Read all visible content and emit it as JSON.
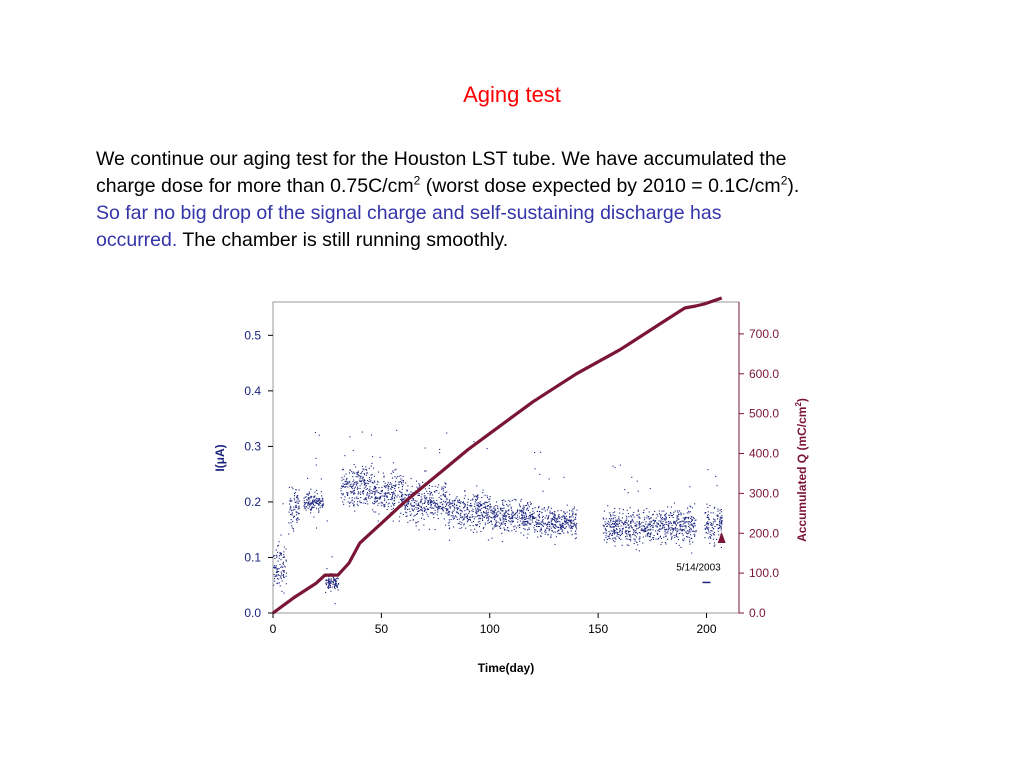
{
  "slide": {
    "title": "Aging test",
    "paragraph": {
      "line1": "We  continue our aging test for the Houston LST tube. We have accumulated the",
      "line2_a": "charge dose for more than 0.75C/cm",
      "line2_sup1": "2",
      "line2_b": " (worst dose expected by 2010 = 0.1C/cm",
      "line2_sup2": "2",
      "line2_c": ").",
      "line3_blue": "So far no big drop of the signal charge and self-sustaining discharge has",
      "line4_blue": "occurred.",
      "line4_black": " The chamber is still running smoothly."
    }
  },
  "colors": {
    "title": "#ff0000",
    "highlight": "#3333aa",
    "current": "#1a237e",
    "charge": "#7b1535"
  },
  "chart_data": {
    "type": "scatter",
    "xlabel": "Time(day)",
    "ylabel_left": "I(μA)",
    "ylabel_right": "Accumulated Q (mC/cm²)",
    "ylabel_right_main": "Accumulated Q (mC/cm",
    "ylabel_right_sup": "2",
    "ylabel_right_close": ")",
    "xlim": [
      0,
      215
    ],
    "ylim_left": [
      0.0,
      0.56
    ],
    "ylim_right": [
      0,
      780
    ],
    "xticks": [
      "0",
      "50",
      "100",
      "150",
      "200"
    ],
    "xtick_values": [
      0,
      50,
      100,
      150,
      200
    ],
    "yticks_left": [
      "0.0",
      "0.1",
      "0.2",
      "0.3",
      "0.4",
      "0.5"
    ],
    "ytick_left_values": [
      0,
      0.1,
      0.2,
      0.3,
      0.4,
      0.5
    ],
    "yticks_right": [
      "0.0",
      "100.0",
      "200.0",
      "300.0",
      "400.0",
      "500.0",
      "600.0",
      "700.0"
    ],
    "ytick_right_values": [
      0,
      100,
      200,
      300,
      400,
      500,
      600,
      700
    ],
    "annotation": "5/14/2003",
    "annotation_point": {
      "x": 200,
      "y": 0.055
    },
    "marker_point": {
      "x": 207,
      "y": 0.135
    },
    "series": [
      {
        "axis": "right",
        "kind": "line",
        "x": [
          0,
          10,
          20,
          24,
          30,
          35,
          40,
          50,
          60,
          70,
          80,
          90,
          100,
          110,
          120,
          130,
          140,
          150,
          160,
          170,
          180,
          190,
          195,
          199,
          207
        ],
        "values": [
          0,
          40,
          75,
          95,
          95,
          125,
          175,
          225,
          275,
          320,
          365,
          410,
          450,
          490,
          530,
          565,
          600,
          630,
          660,
          695,
          730,
          765,
          770,
          775,
          790
        ]
      },
      {
        "axis": "left",
        "kind": "scatter",
        "clusters": [
          {
            "from": 0,
            "to": 6,
            "mean": 0.085,
            "spread": 0.025
          },
          {
            "from": 7,
            "to": 12,
            "mean": 0.19,
            "spread": 0.025
          },
          {
            "from": 14,
            "to": 23,
            "mean": 0.2,
            "spread": 0.012
          },
          {
            "from": 24,
            "to": 30,
            "mean": 0.055,
            "spread": 0.008
          },
          {
            "from": 31,
            "to": 45,
            "mean": 0.23,
            "spread": 0.025
          },
          {
            "from": 45,
            "to": 60,
            "mean": 0.215,
            "spread": 0.025
          },
          {
            "from": 60,
            "to": 80,
            "mean": 0.2,
            "spread": 0.022
          },
          {
            "from": 80,
            "to": 100,
            "mean": 0.185,
            "spread": 0.02
          },
          {
            "from": 100,
            "to": 120,
            "mean": 0.175,
            "spread": 0.018
          },
          {
            "from": 120,
            "to": 140,
            "mean": 0.165,
            "spread": 0.016
          },
          {
            "from": 152,
            "to": 175,
            "mean": 0.155,
            "spread": 0.02
          },
          {
            "from": 175,
            "to": 195,
            "mean": 0.16,
            "spread": 0.02
          },
          {
            "from": 199,
            "to": 207,
            "mean": 0.16,
            "spread": 0.02
          }
        ]
      }
    ]
  }
}
